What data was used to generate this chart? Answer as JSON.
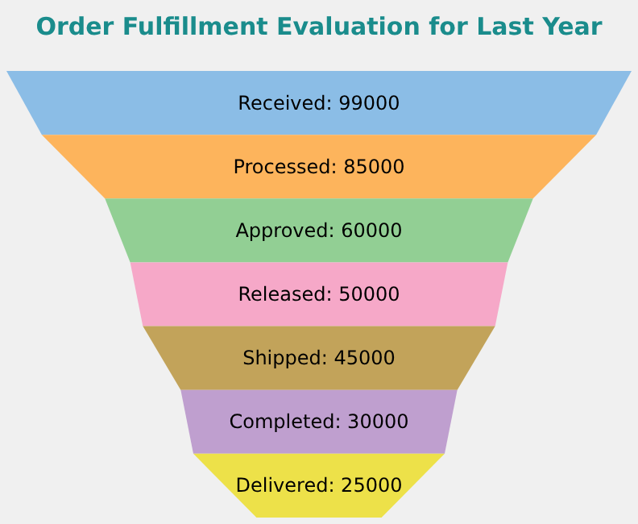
{
  "chart_data": {
    "type": "other",
    "title": "Order Fulfillment Evaluation for Last Year",
    "categories": [
      "Received",
      "Processed",
      "Approved",
      "Released",
      "Shipped",
      "Completed",
      "Delivered"
    ],
    "values": [
      99000,
      85000,
      60000,
      50000,
      45000,
      30000,
      25000
    ],
    "colors": [
      "#8bbde6",
      "#fdb45c",
      "#92cf94",
      "#f6a8c8",
      "#c2a35a",
      "#bf9fcf",
      "#ede149"
    ],
    "value_labels": [
      ": 99000",
      ": 85000",
      ": 60000",
      ": 50000",
      ": 45000",
      ": 30000",
      ": 25000"
    ]
  }
}
